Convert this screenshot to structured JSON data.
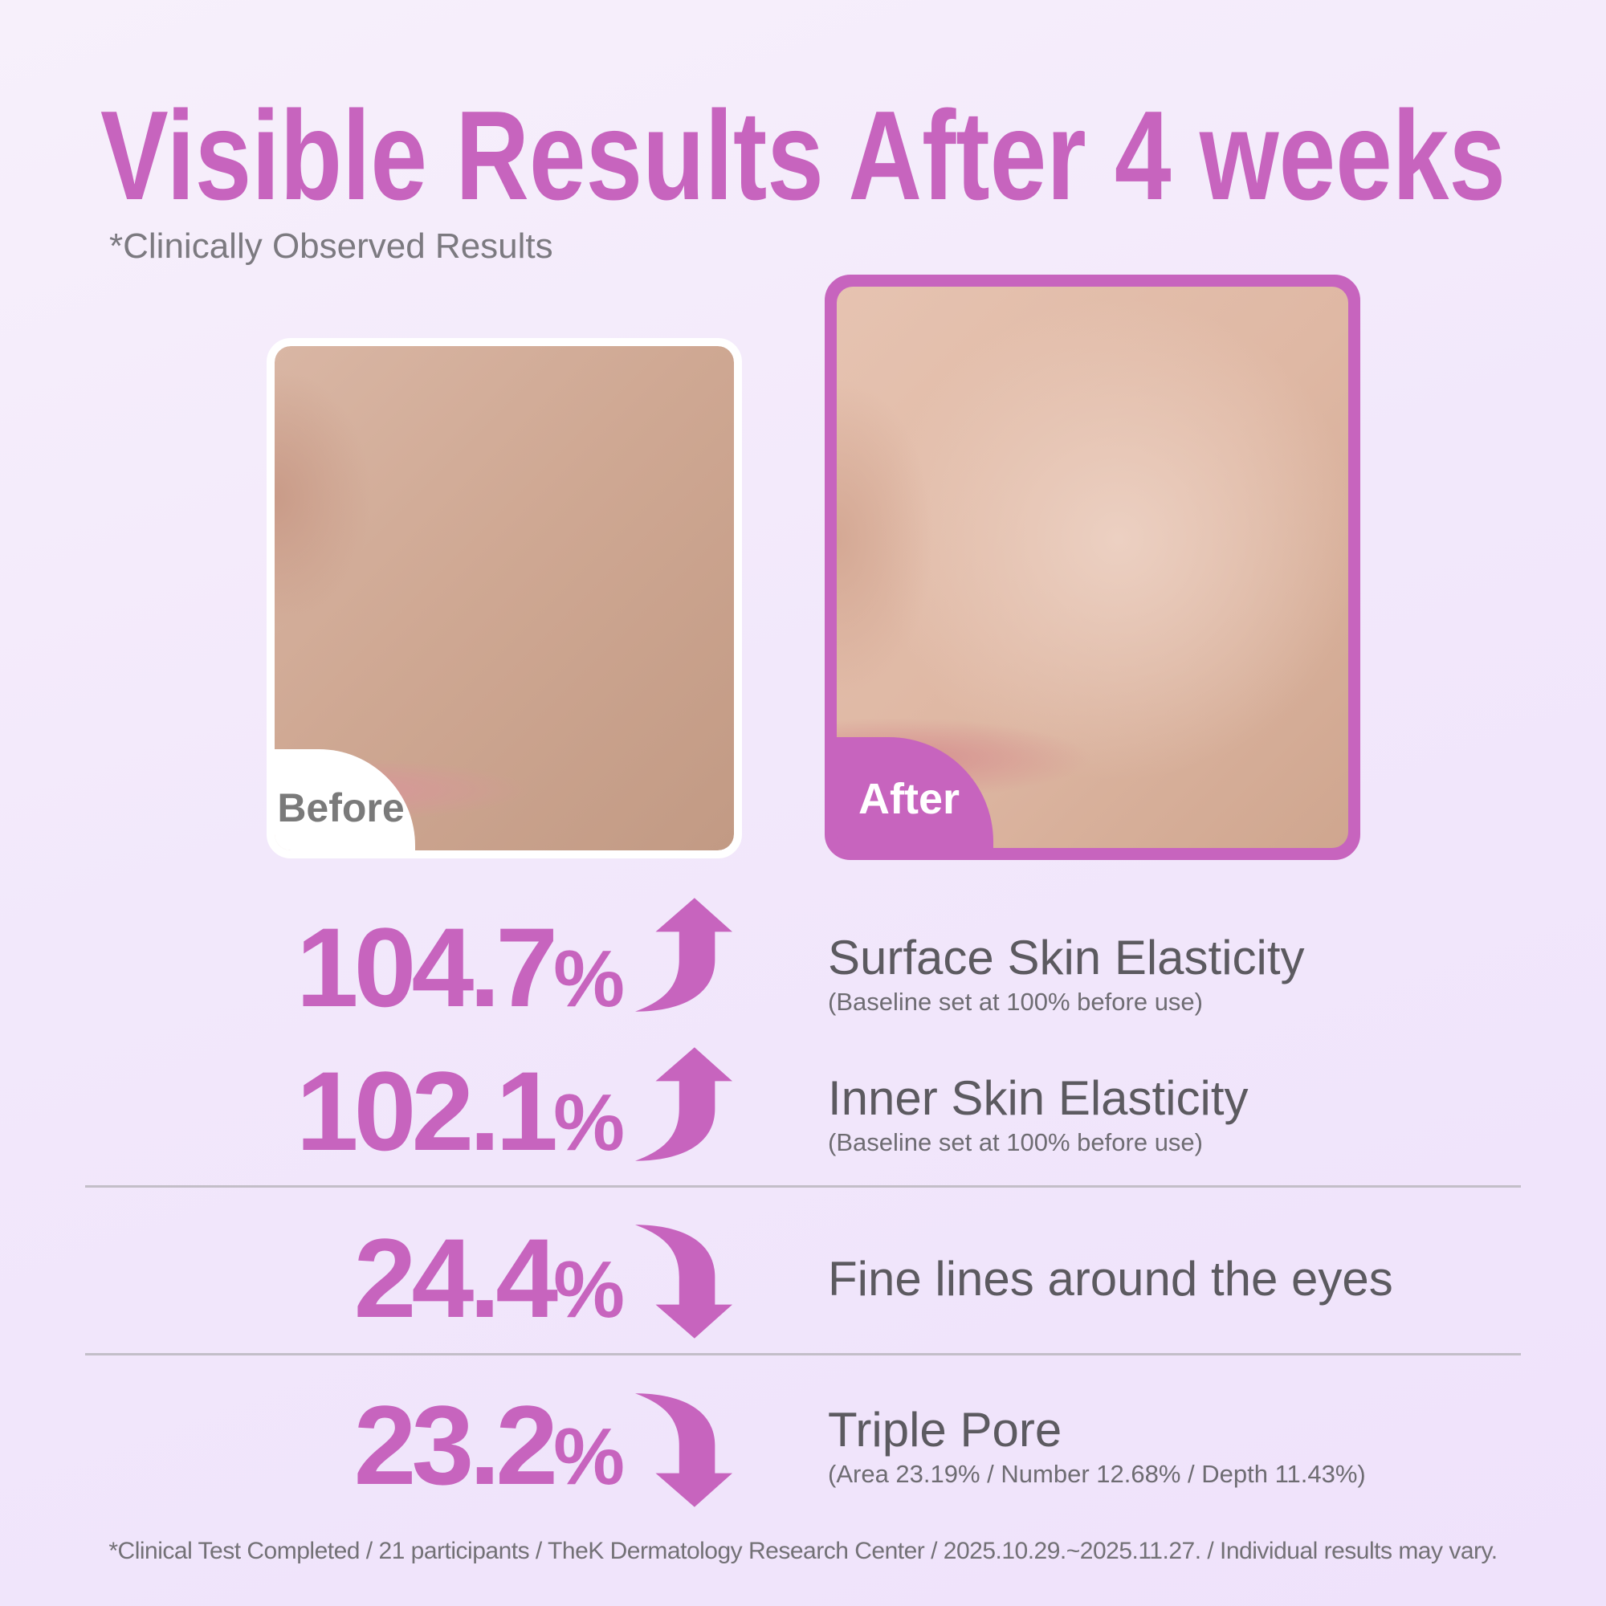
{
  "header": {
    "title": "Visible Results After 4 weeks",
    "subtitle": "*Clinically Observed Results"
  },
  "photos": {
    "before_label": "Before",
    "after_label": "After"
  },
  "stats": [
    {
      "value": "104.7",
      "unit": "%",
      "direction": "up",
      "label": "Surface Skin Elasticity",
      "note": "(Baseline set at 100% before use)"
    },
    {
      "value": "102.1",
      "unit": "%",
      "direction": "up",
      "label": "Inner Skin Elasticity",
      "note": "(Baseline set at 100% before use)"
    },
    {
      "value": "24.4",
      "unit": "%",
      "direction": "down",
      "label": "Fine lines around the eyes",
      "note": ""
    },
    {
      "value": "23.2",
      "unit": "%",
      "direction": "down",
      "label": "Triple Pore",
      "note": "(Area 23.19% / Number 12.68% / Depth 11.43%)"
    }
  ],
  "footer": "*Clinical Test Completed / 21 participants / TheK Dermatology Research Center / 2025.10.29.~2025.11.27. / Individual results may vary.",
  "colors": {
    "accent": "#c764be",
    "text": "#5c5a60",
    "muted": "#7c7a80"
  },
  "icons": {
    "up": "curved-up-arrow",
    "down": "curved-down-arrow"
  }
}
